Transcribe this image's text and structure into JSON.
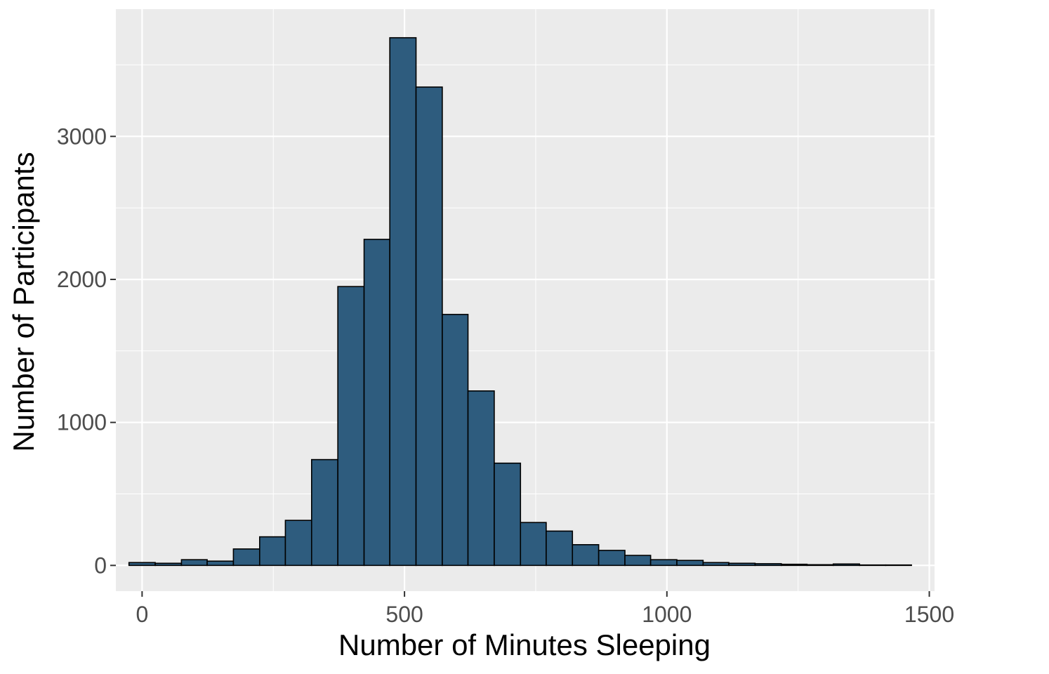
{
  "chart_data": {
    "type": "bar",
    "title": "",
    "xlabel": "Number of Minutes Sleeping",
    "ylabel": "Number of Participants",
    "xlim": [
      -50,
      1510
    ],
    "ylim": [
      -180,
      3890
    ],
    "x_ticks": [
      0,
      500,
      1000,
      1500
    ],
    "y_ticks": [
      0,
      1000,
      2000,
      3000
    ],
    "x_minor_ticks": [
      250,
      750,
      1250
    ],
    "y_minor_ticks": [
      500,
      1500,
      2500,
      3500
    ],
    "grid": true,
    "bin_width": 49.7,
    "bins": [
      {
        "start": -25,
        "end": 25,
        "count": 20
      },
      {
        "start": 25,
        "end": 75,
        "count": 15
      },
      {
        "start": 75,
        "end": 124,
        "count": 40
      },
      {
        "start": 124,
        "end": 174,
        "count": 30
      },
      {
        "start": 174,
        "end": 224,
        "count": 115
      },
      {
        "start": 224,
        "end": 273,
        "count": 200
      },
      {
        "start": 273,
        "end": 323,
        "count": 315
      },
      {
        "start": 323,
        "end": 373,
        "count": 740
      },
      {
        "start": 373,
        "end": 423,
        "count": 1950
      },
      {
        "start": 423,
        "end": 472,
        "count": 2280
      },
      {
        "start": 472,
        "end": 522,
        "count": 3690
      },
      {
        "start": 522,
        "end": 572,
        "count": 3345
      },
      {
        "start": 572,
        "end": 621,
        "count": 1755
      },
      {
        "start": 621,
        "end": 671,
        "count": 1220
      },
      {
        "start": 671,
        "end": 721,
        "count": 715
      },
      {
        "start": 721,
        "end": 770,
        "count": 300
      },
      {
        "start": 770,
        "end": 820,
        "count": 240
      },
      {
        "start": 820,
        "end": 870,
        "count": 145
      },
      {
        "start": 870,
        "end": 920,
        "count": 105
      },
      {
        "start": 920,
        "end": 969,
        "count": 70
      },
      {
        "start": 969,
        "end": 1019,
        "count": 40
      },
      {
        "start": 1019,
        "end": 1069,
        "count": 35
      },
      {
        "start": 1069,
        "end": 1118,
        "count": 20
      },
      {
        "start": 1118,
        "end": 1168,
        "count": 15
      },
      {
        "start": 1168,
        "end": 1218,
        "count": 12
      },
      {
        "start": 1218,
        "end": 1267,
        "count": 8
      },
      {
        "start": 1267,
        "end": 1317,
        "count": 5
      },
      {
        "start": 1317,
        "end": 1367,
        "count": 10
      },
      {
        "start": 1367,
        "end": 1417,
        "count": 3
      },
      {
        "start": 1417,
        "end": 1466,
        "count": 3
      }
    ],
    "colors": {
      "bar_fill": "#2e5c7e",
      "bar_outline": "#000000",
      "panel_background": "#ebebeb",
      "grid": "#ffffff",
      "tick_label": "#4d4d4d",
      "tick_mark": "#333333"
    }
  }
}
